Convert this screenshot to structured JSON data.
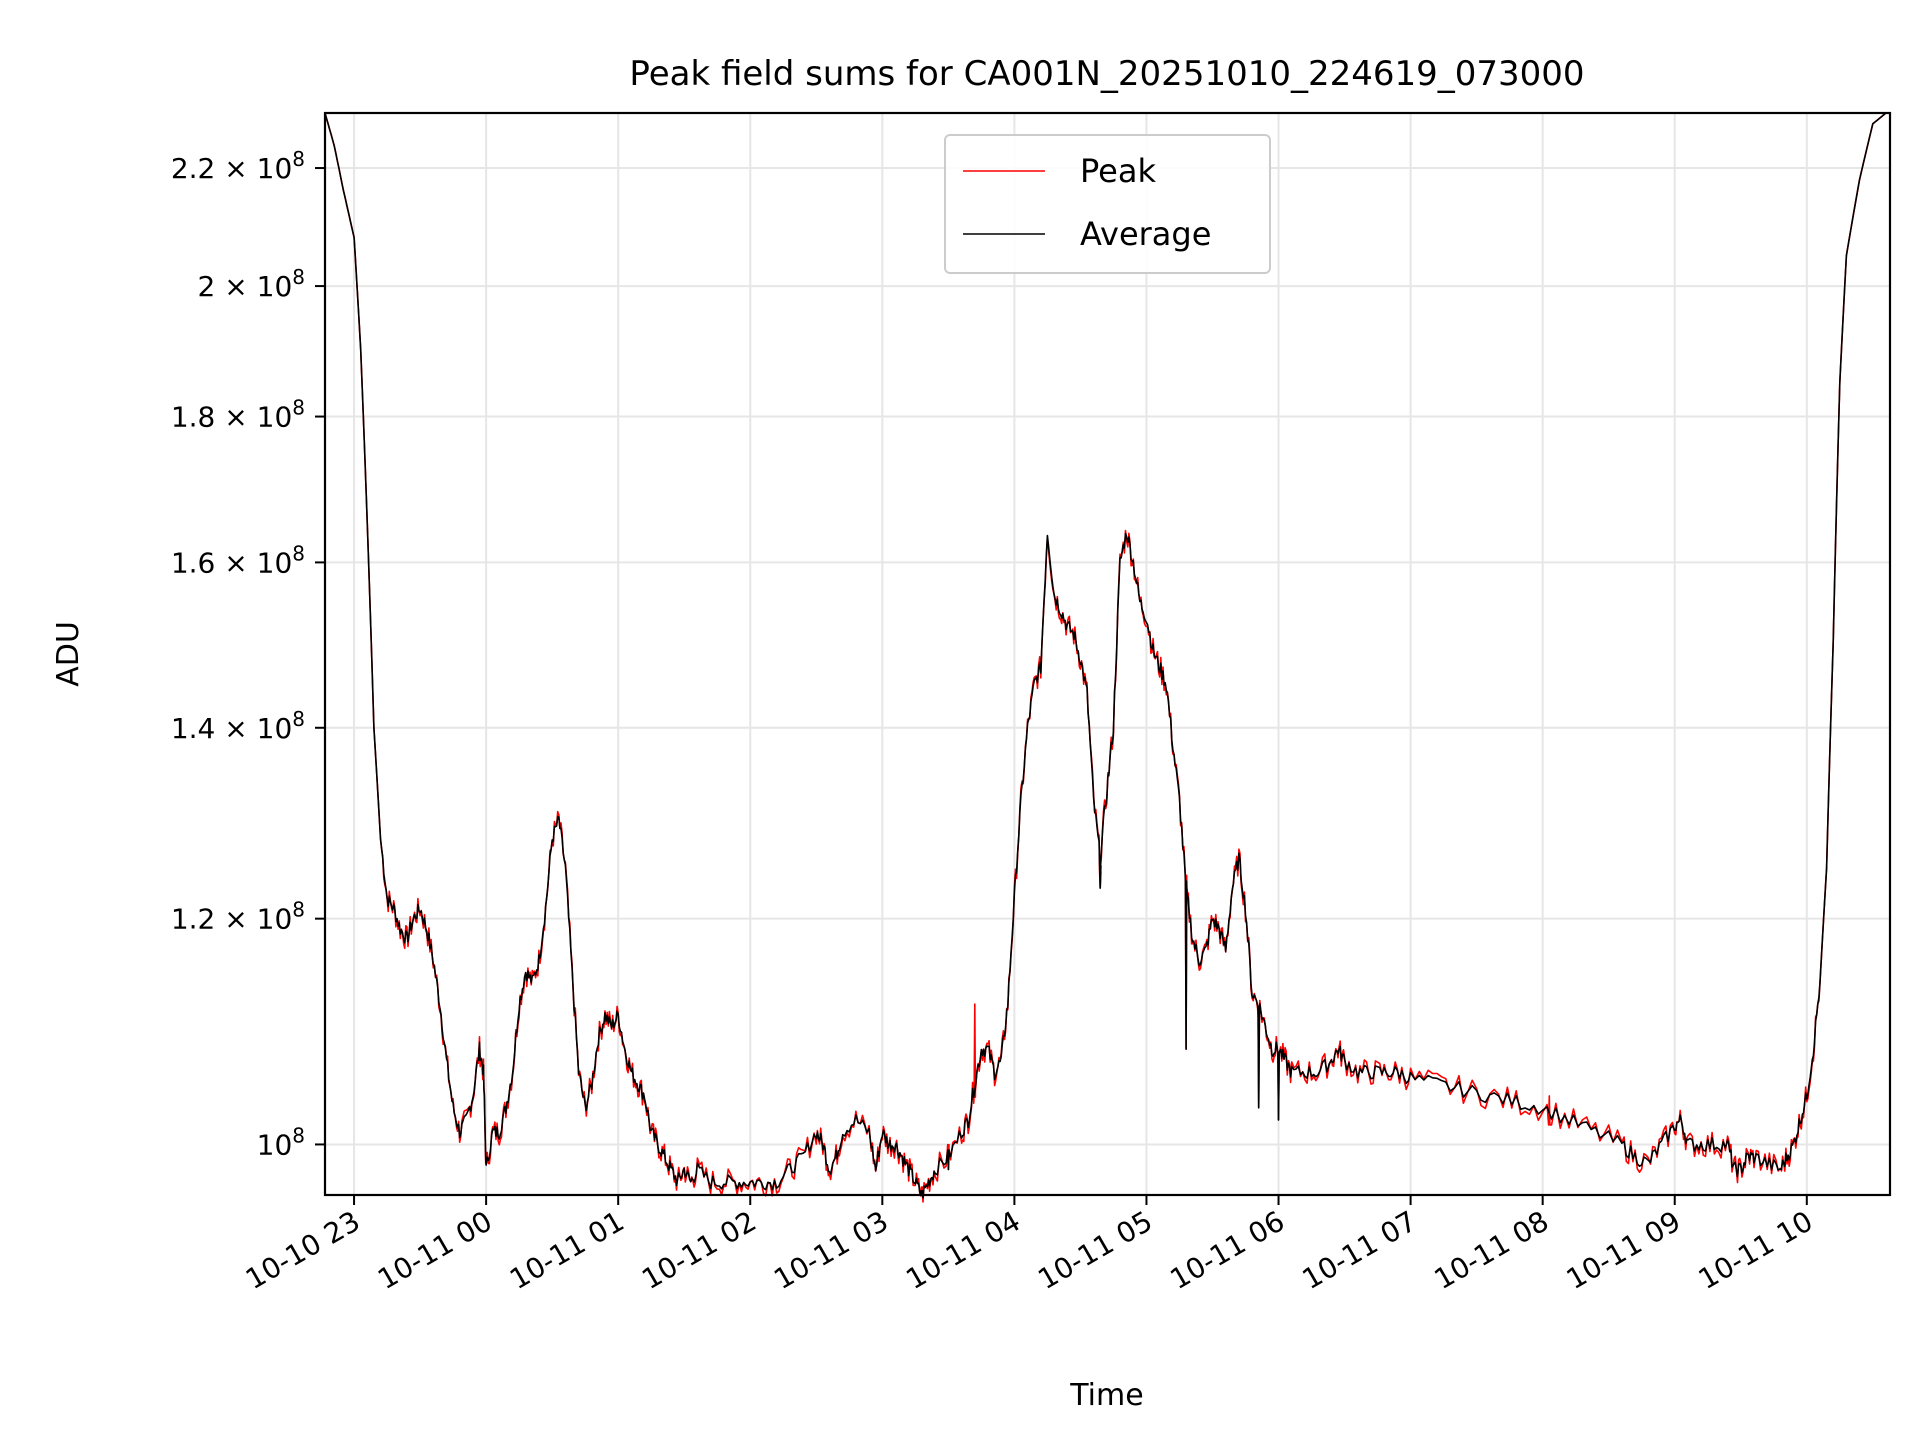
{
  "chart_data": {
    "type": "line",
    "title": "Peak field sums for CA001N_20251010_224619_073000",
    "xlabel": "Time",
    "ylabel": "ADU",
    "yscale": "log",
    "ylim": [
      96000000,
      230000000
    ],
    "xlim_hours": [
      -1.22,
      10.63
    ],
    "x_unit": "hours relative to 10-11 00:00",
    "grid": true,
    "legend_position": "top-center",
    "y_ticks": [
      {
        "value": 100000000,
        "mantissa": "",
        "exp": "8"
      },
      {
        "value": 120000000,
        "mantissa": "1.2",
        "exp": "8"
      },
      {
        "value": 140000000,
        "mantissa": "1.4",
        "exp": "8"
      },
      {
        "value": 160000000,
        "mantissa": "1.6",
        "exp": "8"
      },
      {
        "value": 180000000,
        "mantissa": "1.8",
        "exp": "8"
      },
      {
        "value": 200000000,
        "mantissa": "2",
        "exp": "8"
      },
      {
        "value": 220000000,
        "mantissa": "2.2",
        "exp": "8"
      }
    ],
    "x_ticks": [
      {
        "hour": -1,
        "label": "10-10 23"
      },
      {
        "hour": 0,
        "label": "10-11 00"
      },
      {
        "hour": 1,
        "label": "10-11 01"
      },
      {
        "hour": 2,
        "label": "10-11 02"
      },
      {
        "hour": 3,
        "label": "10-11 03"
      },
      {
        "hour": 4,
        "label": "10-11 04"
      },
      {
        "hour": 5,
        "label": "10-11 05"
      },
      {
        "hour": 6,
        "label": "10-11 06"
      },
      {
        "hour": 7,
        "label": "10-11 07"
      },
      {
        "hour": 8,
        "label": "10-11 08"
      },
      {
        "hour": 9,
        "label": "10-11 09"
      },
      {
        "hour": 10,
        "label": "10-11 10"
      }
    ],
    "series": [
      {
        "name": "Peak",
        "color": "#ff0000"
      },
      {
        "name": "Average",
        "color": "#000000"
      }
    ],
    "points": [
      [
        -1.22,
        230
      ],
      [
        -1.15,
        224
      ],
      [
        -1.08,
        216
      ],
      [
        -1.0,
        208
      ],
      [
        -0.95,
        190
      ],
      [
        -0.9,
        165
      ],
      [
        -0.85,
        140
      ],
      [
        -0.8,
        128
      ],
      [
        -0.75,
        122
      ],
      [
        -0.7,
        121
      ],
      [
        -0.65,
        119
      ],
      [
        -0.6,
        118
      ],
      [
        -0.55,
        120
      ],
      [
        -0.5,
        121
      ],
      [
        -0.45,
        119
      ],
      [
        -0.4,
        116
      ],
      [
        -0.35,
        112
      ],
      [
        -0.3,
        107
      ],
      [
        -0.25,
        103
      ],
      [
        -0.2,
        101
      ],
      [
        -0.15,
        102
      ],
      [
        -0.1,
        104
      ],
      [
        -0.05,
        108
      ],
      [
        -0.02,
        106
      ],
      [
        0.0,
        98
      ],
      [
        0.05,
        101
      ],
      [
        0.1,
        101
      ],
      [
        0.15,
        103
      ],
      [
        0.2,
        106
      ],
      [
        0.25,
        112
      ],
      [
        0.3,
        115
      ],
      [
        0.35,
        114
      ],
      [
        0.4,
        116
      ],
      [
        0.45,
        121
      ],
      [
        0.5,
        128
      ],
      [
        0.55,
        130
      ],
      [
        0.6,
        125
      ],
      [
        0.65,
        115
      ],
      [
        0.7,
        106
      ],
      [
        0.75,
        103
      ],
      [
        0.8,
        105
      ],
      [
        0.85,
        109
      ],
      [
        0.9,
        111
      ],
      [
        0.95,
        110
      ],
      [
        1.0,
        111
      ],
      [
        1.05,
        108
      ],
      [
        1.1,
        106
      ],
      [
        1.15,
        105
      ],
      [
        1.2,
        104
      ],
      [
        1.25,
        101
      ],
      [
        1.3,
        100
      ],
      [
        1.35,
        99
      ],
      [
        1.4,
        98
      ],
      [
        1.45,
        97
      ],
      [
        1.5,
        98
      ],
      [
        1.55,
        97
      ],
      [
        1.6,
        98
      ],
      [
        1.7,
        97
      ],
      [
        1.8,
        97
      ],
      [
        1.9,
        97
      ],
      [
        2.0,
        97
      ],
      [
        2.1,
        97
      ],
      [
        2.2,
        97
      ],
      [
        2.3,
        98
      ],
      [
        2.4,
        99
      ],
      [
        2.5,
        101
      ],
      [
        2.55,
        100
      ],
      [
        2.6,
        98
      ],
      [
        2.65,
        99
      ],
      [
        2.7,
        101
      ],
      [
        2.8,
        102
      ],
      [
        2.9,
        101
      ],
      [
        2.95,
        98
      ],
      [
        3.0,
        101
      ],
      [
        3.05,
        100
      ],
      [
        3.1,
        100
      ],
      [
        3.15,
        99
      ],
      [
        3.2,
        98
      ],
      [
        3.25,
        97
      ],
      [
        3.3,
        96
      ],
      [
        3.35,
        97
      ],
      [
        3.4,
        98
      ],
      [
        3.5,
        99
      ],
      [
        3.6,
        101
      ],
      [
        3.65,
        102
      ],
      [
        3.7,
        105
      ],
      [
        3.75,
        108
      ],
      [
        3.8,
        108
      ],
      [
        3.85,
        106
      ],
      [
        3.9,
        107
      ],
      [
        3.95,
        112
      ],
      [
        4.0,
        122
      ],
      [
        4.05,
        132
      ],
      [
        4.1,
        140
      ],
      [
        4.15,
        145
      ],
      [
        4.2,
        147
      ],
      [
        4.25,
        164
      ],
      [
        4.3,
        156
      ],
      [
        4.35,
        154
      ],
      [
        4.4,
        152
      ],
      [
        4.45,
        151
      ],
      [
        4.5,
        148
      ],
      [
        4.55,
        144
      ],
      [
        4.6,
        132
      ],
      [
        4.65,
        126
      ],
      [
        4.7,
        133
      ],
      [
        4.75,
        140
      ],
      [
        4.8,
        160
      ],
      [
        4.85,
        164
      ],
      [
        4.9,
        160
      ],
      [
        4.95,
        155
      ],
      [
        5.0,
        153
      ],
      [
        5.05,
        149
      ],
      [
        5.1,
        147
      ],
      [
        5.15,
        145
      ],
      [
        5.2,
        138
      ],
      [
        5.25,
        132
      ],
      [
        5.3,
        123
      ],
      [
        5.35,
        118
      ],
      [
        5.4,
        116
      ],
      [
        5.45,
        117
      ],
      [
        5.5,
        120
      ],
      [
        5.55,
        119
      ],
      [
        5.6,
        117
      ],
      [
        5.65,
        123
      ],
      [
        5.7,
        126
      ],
      [
        5.75,
        121
      ],
      [
        5.8,
        113
      ],
      [
        5.85,
        112
      ],
      [
        5.9,
        110
      ],
      [
        5.95,
        108
      ],
      [
        6.0,
        108
      ],
      [
        6.05,
        107
      ],
      [
        6.1,
        106
      ],
      [
        6.2,
        106
      ],
      [
        6.3,
        106
      ],
      [
        6.4,
        107
      ],
      [
        6.45,
        108
      ],
      [
        6.5,
        107
      ],
      [
        6.6,
        106
      ],
      [
        6.7,
        106
      ],
      [
        6.8,
        106
      ],
      [
        6.9,
        106
      ],
      [
        7.0,
        105.5
      ],
      [
        7.2,
        105
      ],
      [
        7.4,
        104.5
      ],
      [
        7.6,
        104
      ],
      [
        7.8,
        103.5
      ],
      [
        8.0,
        103
      ],
      [
        8.2,
        102
      ],
      [
        8.4,
        101
      ],
      [
        8.6,
        100
      ],
      [
        8.7,
        99
      ],
      [
        8.8,
        98.5
      ],
      [
        8.9,
        100
      ],
      [
        9.0,
        101.5
      ],
      [
        9.05,
        102
      ],
      [
        9.1,
        100
      ],
      [
        9.2,
        100
      ],
      [
        9.3,
        100
      ],
      [
        9.4,
        100
      ],
      [
        9.45,
        98
      ],
      [
        9.5,
        98
      ],
      [
        9.55,
        99
      ],
      [
        9.6,
        99
      ],
      [
        9.7,
        98.5
      ],
      [
        9.8,
        98
      ],
      [
        9.85,
        99
      ],
      [
        9.9,
        100
      ],
      [
        9.95,
        102
      ],
      [
        10.0,
        104
      ],
      [
        10.05,
        108
      ],
      [
        10.1,
        114
      ],
      [
        10.15,
        125
      ],
      [
        10.2,
        150
      ],
      [
        10.25,
        185
      ],
      [
        10.3,
        205
      ],
      [
        10.4,
        218
      ],
      [
        10.5,
        228
      ],
      [
        10.6,
        230
      ],
      [
        10.63,
        230
      ]
    ],
    "spikes": [
      {
        "hour": 5.3,
        "value": 108
      },
      {
        "hour": 5.85,
        "value": 103
      },
      {
        "hour": 6.0,
        "value": 102
      },
      {
        "hour": 4.65,
        "value": 123
      },
      {
        "hour": 3.5,
        "value": 98
      },
      {
        "hour": 3.3,
        "value": 96
      }
    ],
    "peak_spikes": [
      {
        "hour": 3.7,
        "value": 112
      },
      {
        "hour": 8.05,
        "value": 104
      }
    ]
  }
}
